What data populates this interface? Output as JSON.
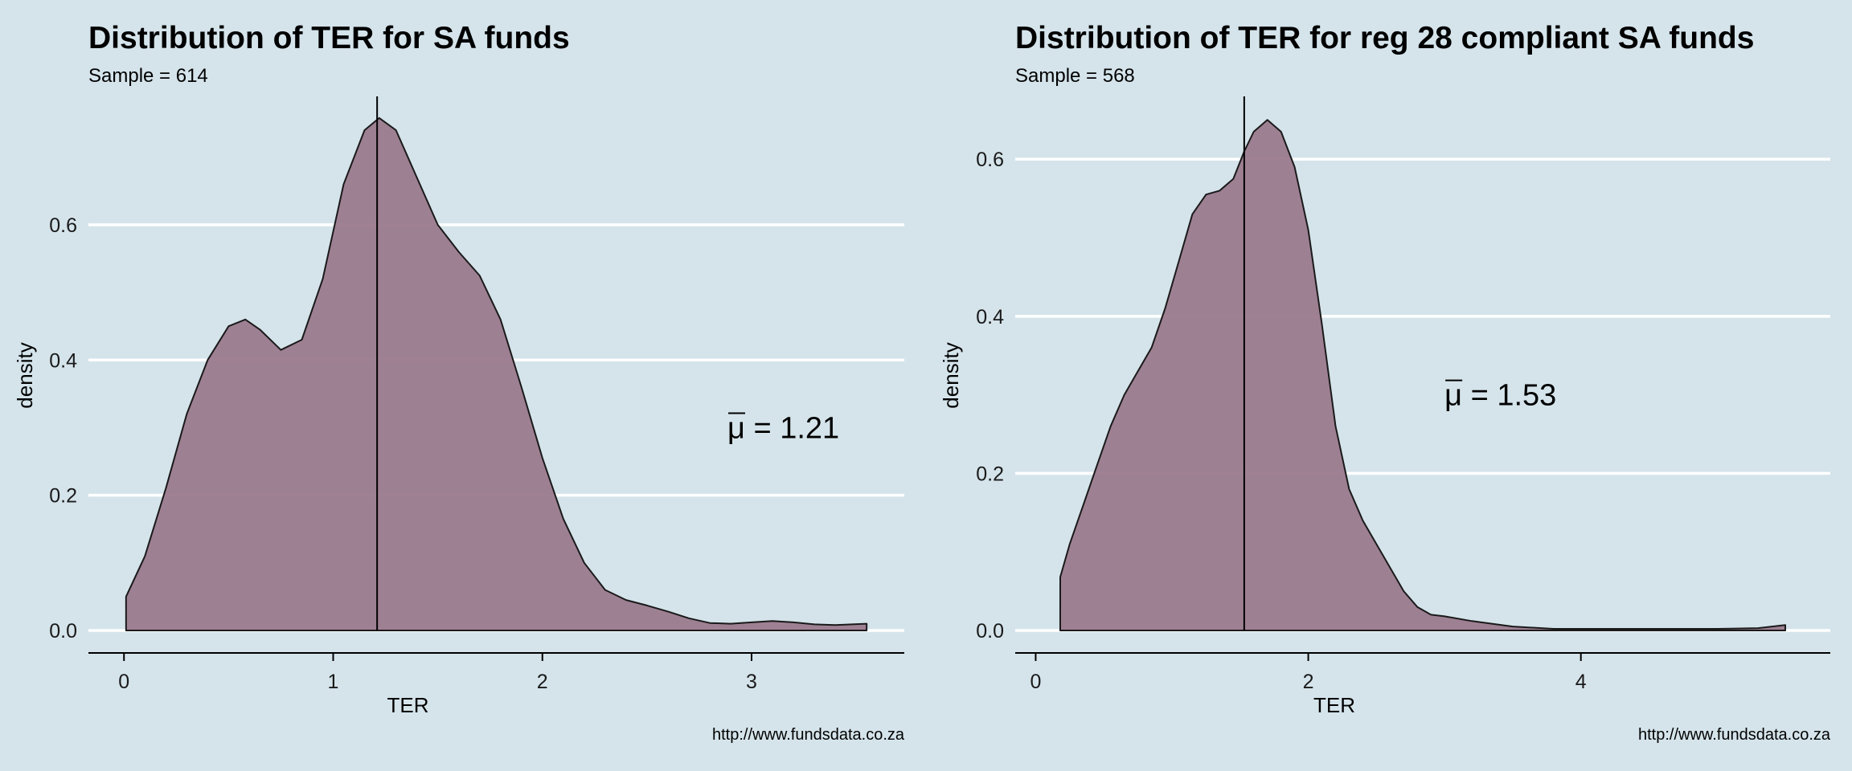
{
  "chart_data": [
    {
      "type": "area",
      "title": "Distribution of TER for SA funds",
      "subtitle": "Sample = 614",
      "xlabel": "TER",
      "ylabel": "density",
      "xlim": [
        -0.17,
        3.73
      ],
      "ylim": [
        0,
        0.79
      ],
      "x_ticks": [
        0,
        1,
        2,
        3
      ],
      "y_ticks": [
        0.0,
        0.2,
        0.4,
        0.6
      ],
      "mean": 1.21,
      "annotation": {
        "symbol": "μ",
        "text": " = 1.21",
        "x": 3.0,
        "y": 0.3
      },
      "caption": "http://www.fundsdata.co.za",
      "fill_color": "#9b7a8e",
      "grid": "horizontal",
      "x": [
        0.01,
        0.1,
        0.2,
        0.3,
        0.4,
        0.5,
        0.58,
        0.65,
        0.75,
        0.85,
        0.95,
        1.05,
        1.15,
        1.22,
        1.3,
        1.4,
        1.5,
        1.6,
        1.7,
        1.8,
        1.9,
        2.0,
        2.1,
        2.2,
        2.3,
        2.4,
        2.5,
        2.6,
        2.7,
        2.8,
        2.9,
        3.0,
        3.1,
        3.2,
        3.3,
        3.4,
        3.55
      ],
      "y": [
        0.05,
        0.11,
        0.21,
        0.32,
        0.4,
        0.45,
        0.46,
        0.445,
        0.415,
        0.43,
        0.52,
        0.66,
        0.74,
        0.758,
        0.74,
        0.67,
        0.6,
        0.56,
        0.525,
        0.46,
        0.36,
        0.255,
        0.165,
        0.1,
        0.06,
        0.045,
        0.037,
        0.028,
        0.018,
        0.011,
        0.01,
        0.012,
        0.014,
        0.012,
        0.009,
        0.008,
        0.01
      ]
    },
    {
      "type": "area",
      "title": "Distribution of TER for reg 28 compliant SA funds",
      "subtitle": "Sample = 568",
      "xlabel": "TER",
      "ylabel": "density",
      "xlim": [
        -0.15,
        5.83
      ],
      "ylim": [
        0,
        0.68
      ],
      "x_ticks": [
        0,
        2,
        4
      ],
      "y_ticks": [
        0.0,
        0.2,
        0.4,
        0.6
      ],
      "mean": 1.53,
      "annotation": {
        "symbol": "μ",
        "text": " = 1.53",
        "x": 3.0,
        "y": 0.3
      },
      "caption": "http://www.fundsdata.co.za",
      "fill_color": "#9b7a8e",
      "grid": "horizontal",
      "x": [
        0.18,
        0.25,
        0.35,
        0.45,
        0.55,
        0.65,
        0.75,
        0.85,
        0.95,
        1.05,
        1.15,
        1.25,
        1.35,
        1.45,
        1.53,
        1.6,
        1.7,
        1.8,
        1.9,
        2.0,
        2.1,
        2.2,
        2.3,
        2.4,
        2.5,
        2.6,
        2.7,
        2.8,
        2.9,
        3.0,
        3.2,
        3.5,
        3.8,
        4.2,
        4.6,
        5.0,
        5.3,
        5.5
      ],
      "y": [
        0.068,
        0.11,
        0.16,
        0.21,
        0.26,
        0.3,
        0.33,
        0.36,
        0.41,
        0.47,
        0.53,
        0.555,
        0.56,
        0.575,
        0.61,
        0.635,
        0.65,
        0.635,
        0.59,
        0.51,
        0.39,
        0.26,
        0.18,
        0.14,
        0.11,
        0.08,
        0.05,
        0.03,
        0.02,
        0.018,
        0.012,
        0.005,
        0.002,
        0.002,
        0.002,
        0.002,
        0.003,
        0.007
      ]
    }
  ]
}
